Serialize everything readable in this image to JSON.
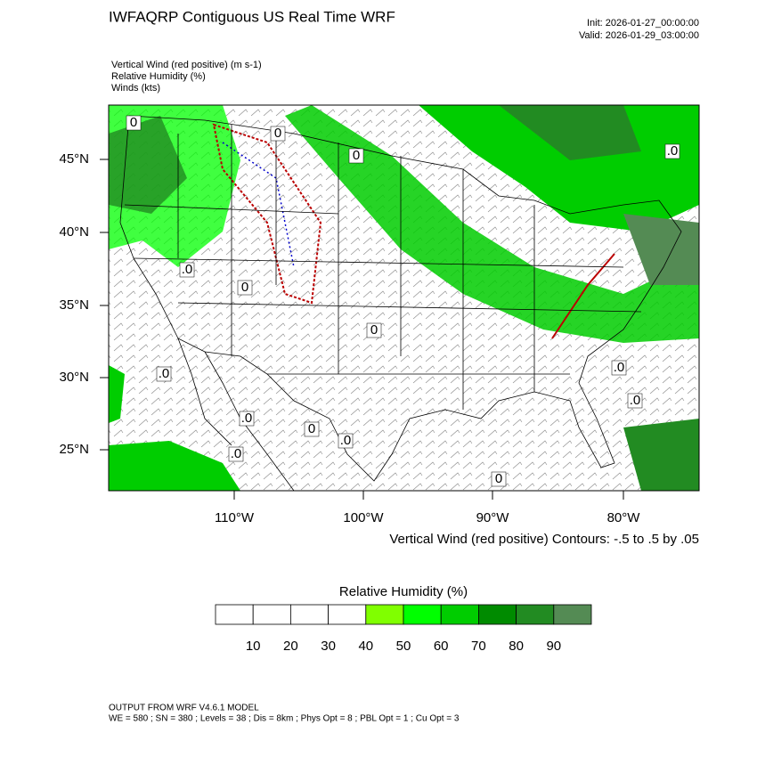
{
  "header": {
    "title": "IWFAQRP Contiguous US Real Time WRF",
    "init": "Init: 2026-01-27_00:00:00",
    "valid": "Valid: 2026-01-29_03:00:00"
  },
  "fields": [
    "Vertical Wind (red positive)   (m s-1)",
    "Relative Humidity   (%)",
    "Winds   (kts)"
  ],
  "map": {
    "lat_labels": [
      "45°N",
      "40°N",
      "35°N",
      "30°N",
      "25°N"
    ],
    "lon_labels": [
      "110°W",
      "100°W",
      "90°W",
      "80°W"
    ],
    "contour_labels": [
      "0",
      "0",
      "0",
      ".0",
      "0",
      "0",
      ".0",
      ".0",
      "0",
      ".0",
      ".0",
      ".0",
      ".0",
      "0",
      ".0"
    ],
    "contour_note": "Vertical Wind (red positive) Contours: -.5 to .5 by .05"
  },
  "colorbar": {
    "title": "Relative Humidity  (%)",
    "labels": [
      10,
      20,
      30,
      40,
      50,
      60,
      70,
      80,
      90
    ],
    "colors": [
      "#ffffff",
      "#ffffff",
      "#ffffff",
      "#ffffff",
      "#80ff00",
      "#00ff00",
      "#00cd00",
      "#008b00",
      "#228b22",
      "#548b54"
    ]
  },
  "footer": {
    "model": "OUTPUT FROM WRF V4.6.1 MODEL",
    "config": "WE = 580 ; SN = 380 ; Levels = 38 ; Dis = 8km ; Phys Opt = 8 ; PBL Opt = 1 ; Cu Opt = 3"
  }
}
